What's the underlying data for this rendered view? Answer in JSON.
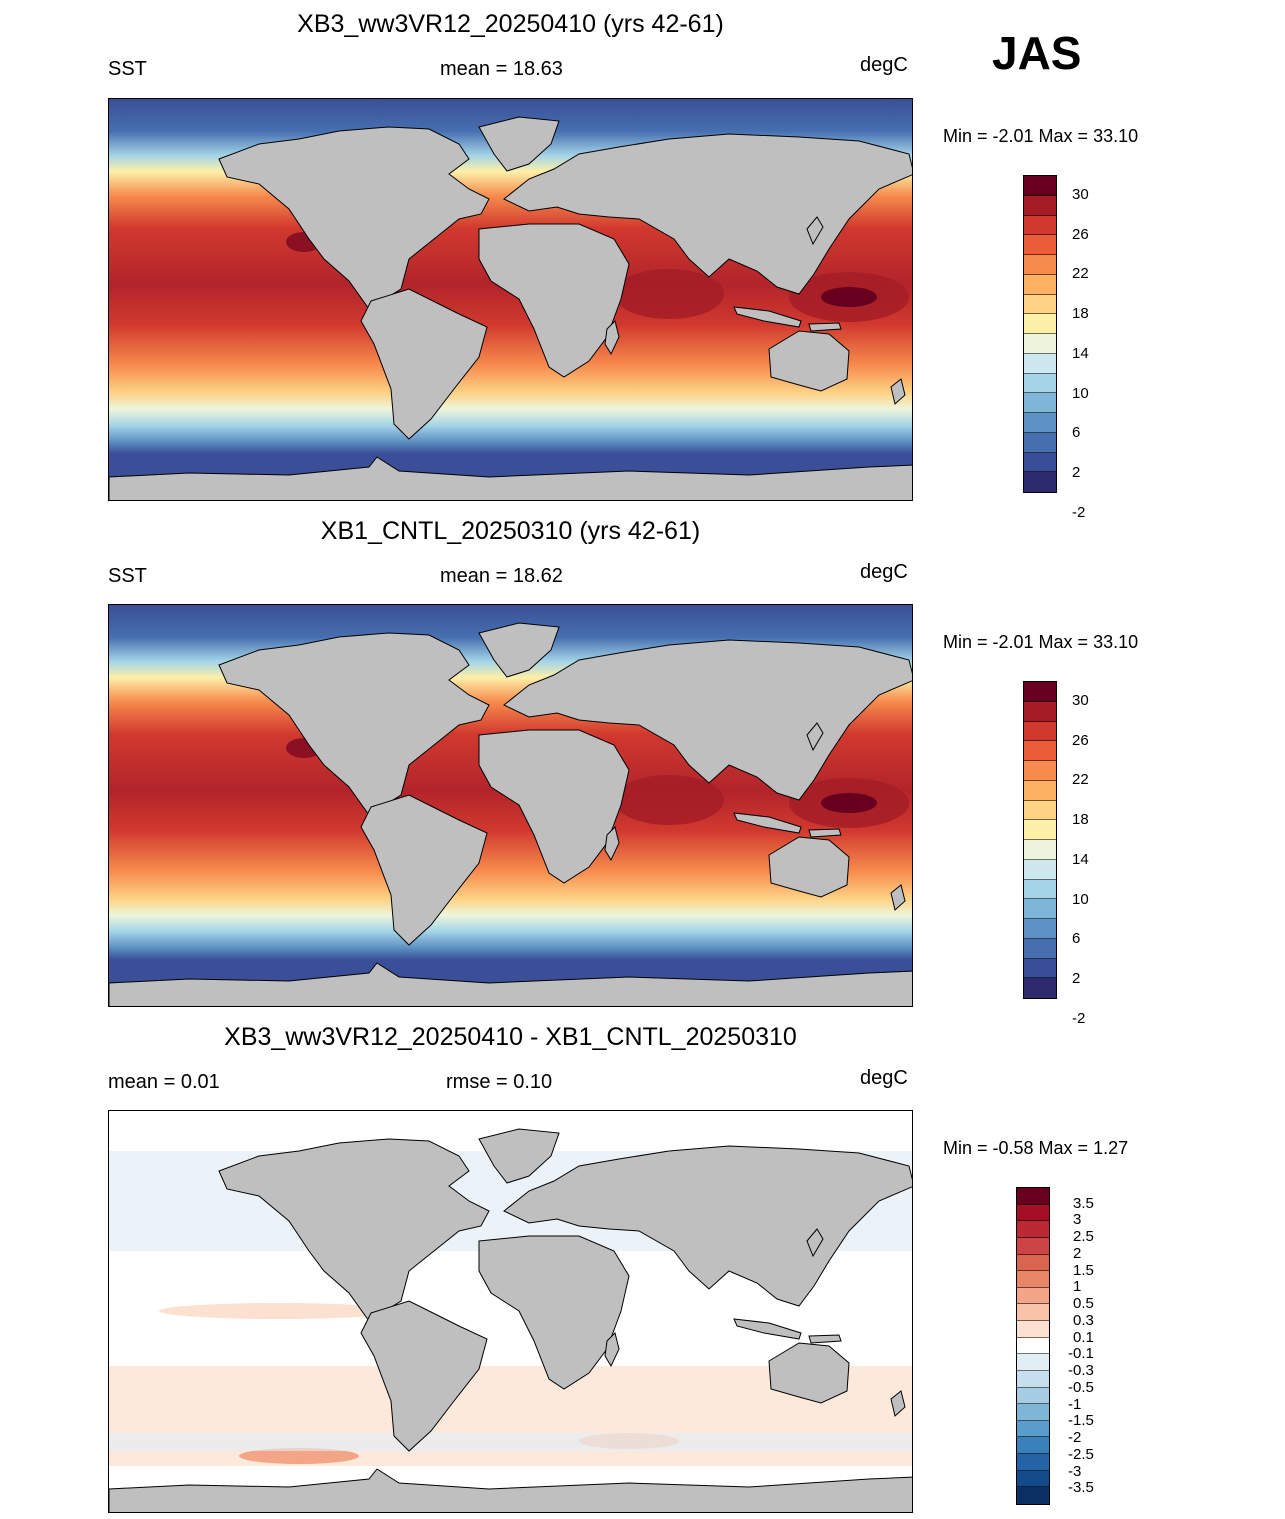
{
  "season": "JAS",
  "panels": [
    {
      "title": "XB3_ww3VR12_20250410 (yrs 42-61)",
      "left": "SST",
      "center": "mean =  18.63",
      "right": "degC",
      "minmax": "Min =  -2.01 Max =  33.10"
    },
    {
      "title": "XB1_CNTL_20250310 (yrs 42-61)",
      "left": "SST",
      "center": "mean =  18.62",
      "right": "degC",
      "minmax": "Min =  -2.01 Max =  33.10"
    },
    {
      "title": "XB3_ww3VR12_20250410 - XB1_CNTL_20250310",
      "left": "mean =   0.01",
      "center": "rmse =   0.10",
      "right": "degC",
      "minmax": "Min =  -0.58 Max =   1.27"
    }
  ],
  "sst_colorbar": {
    "labels": [
      "30",
      "26",
      "22",
      "18",
      "14",
      "10",
      "6",
      "2",
      "-2"
    ],
    "colors": [
      "#67001f",
      "#a41d26",
      "#d1392e",
      "#ea5d38",
      "#f78b4d",
      "#fdb163",
      "#fed385",
      "#fdf0a8",
      "#edf6dd",
      "#cde8ef",
      "#a4d4e7",
      "#7fb6d8",
      "#5e91c4",
      "#466fb0",
      "#3a4d97",
      "#2d2a6e"
    ]
  },
  "diff_colorbar": {
    "labels": [
      "3.5",
      "3",
      "2.5",
      "2",
      "1.5",
      "1",
      "0.5",
      "0.3",
      "0.1",
      "-0.1",
      "-0.3",
      "-0.5",
      "-1",
      "-1.5",
      "-2",
      "-2.5",
      "-3",
      "-3.5"
    ],
    "colors": [
      "#67001f",
      "#a50f26",
      "#bb2a34",
      "#cc4444",
      "#d9654f",
      "#e98567",
      "#f4a587",
      "#f9c3a8",
      "#fce0d0",
      "#ffffff",
      "#e2eef6",
      "#c6dfee",
      "#a6cde4",
      "#7fb6d8",
      "#5a9ccb",
      "#3a80bb",
      "#2464a6",
      "#134b8b",
      "#0a3064"
    ]
  },
  "colors": {
    "land": "#bfbfbf",
    "ocean_polar": "#3b5296",
    "diff_background": "#ffffff"
  }
}
